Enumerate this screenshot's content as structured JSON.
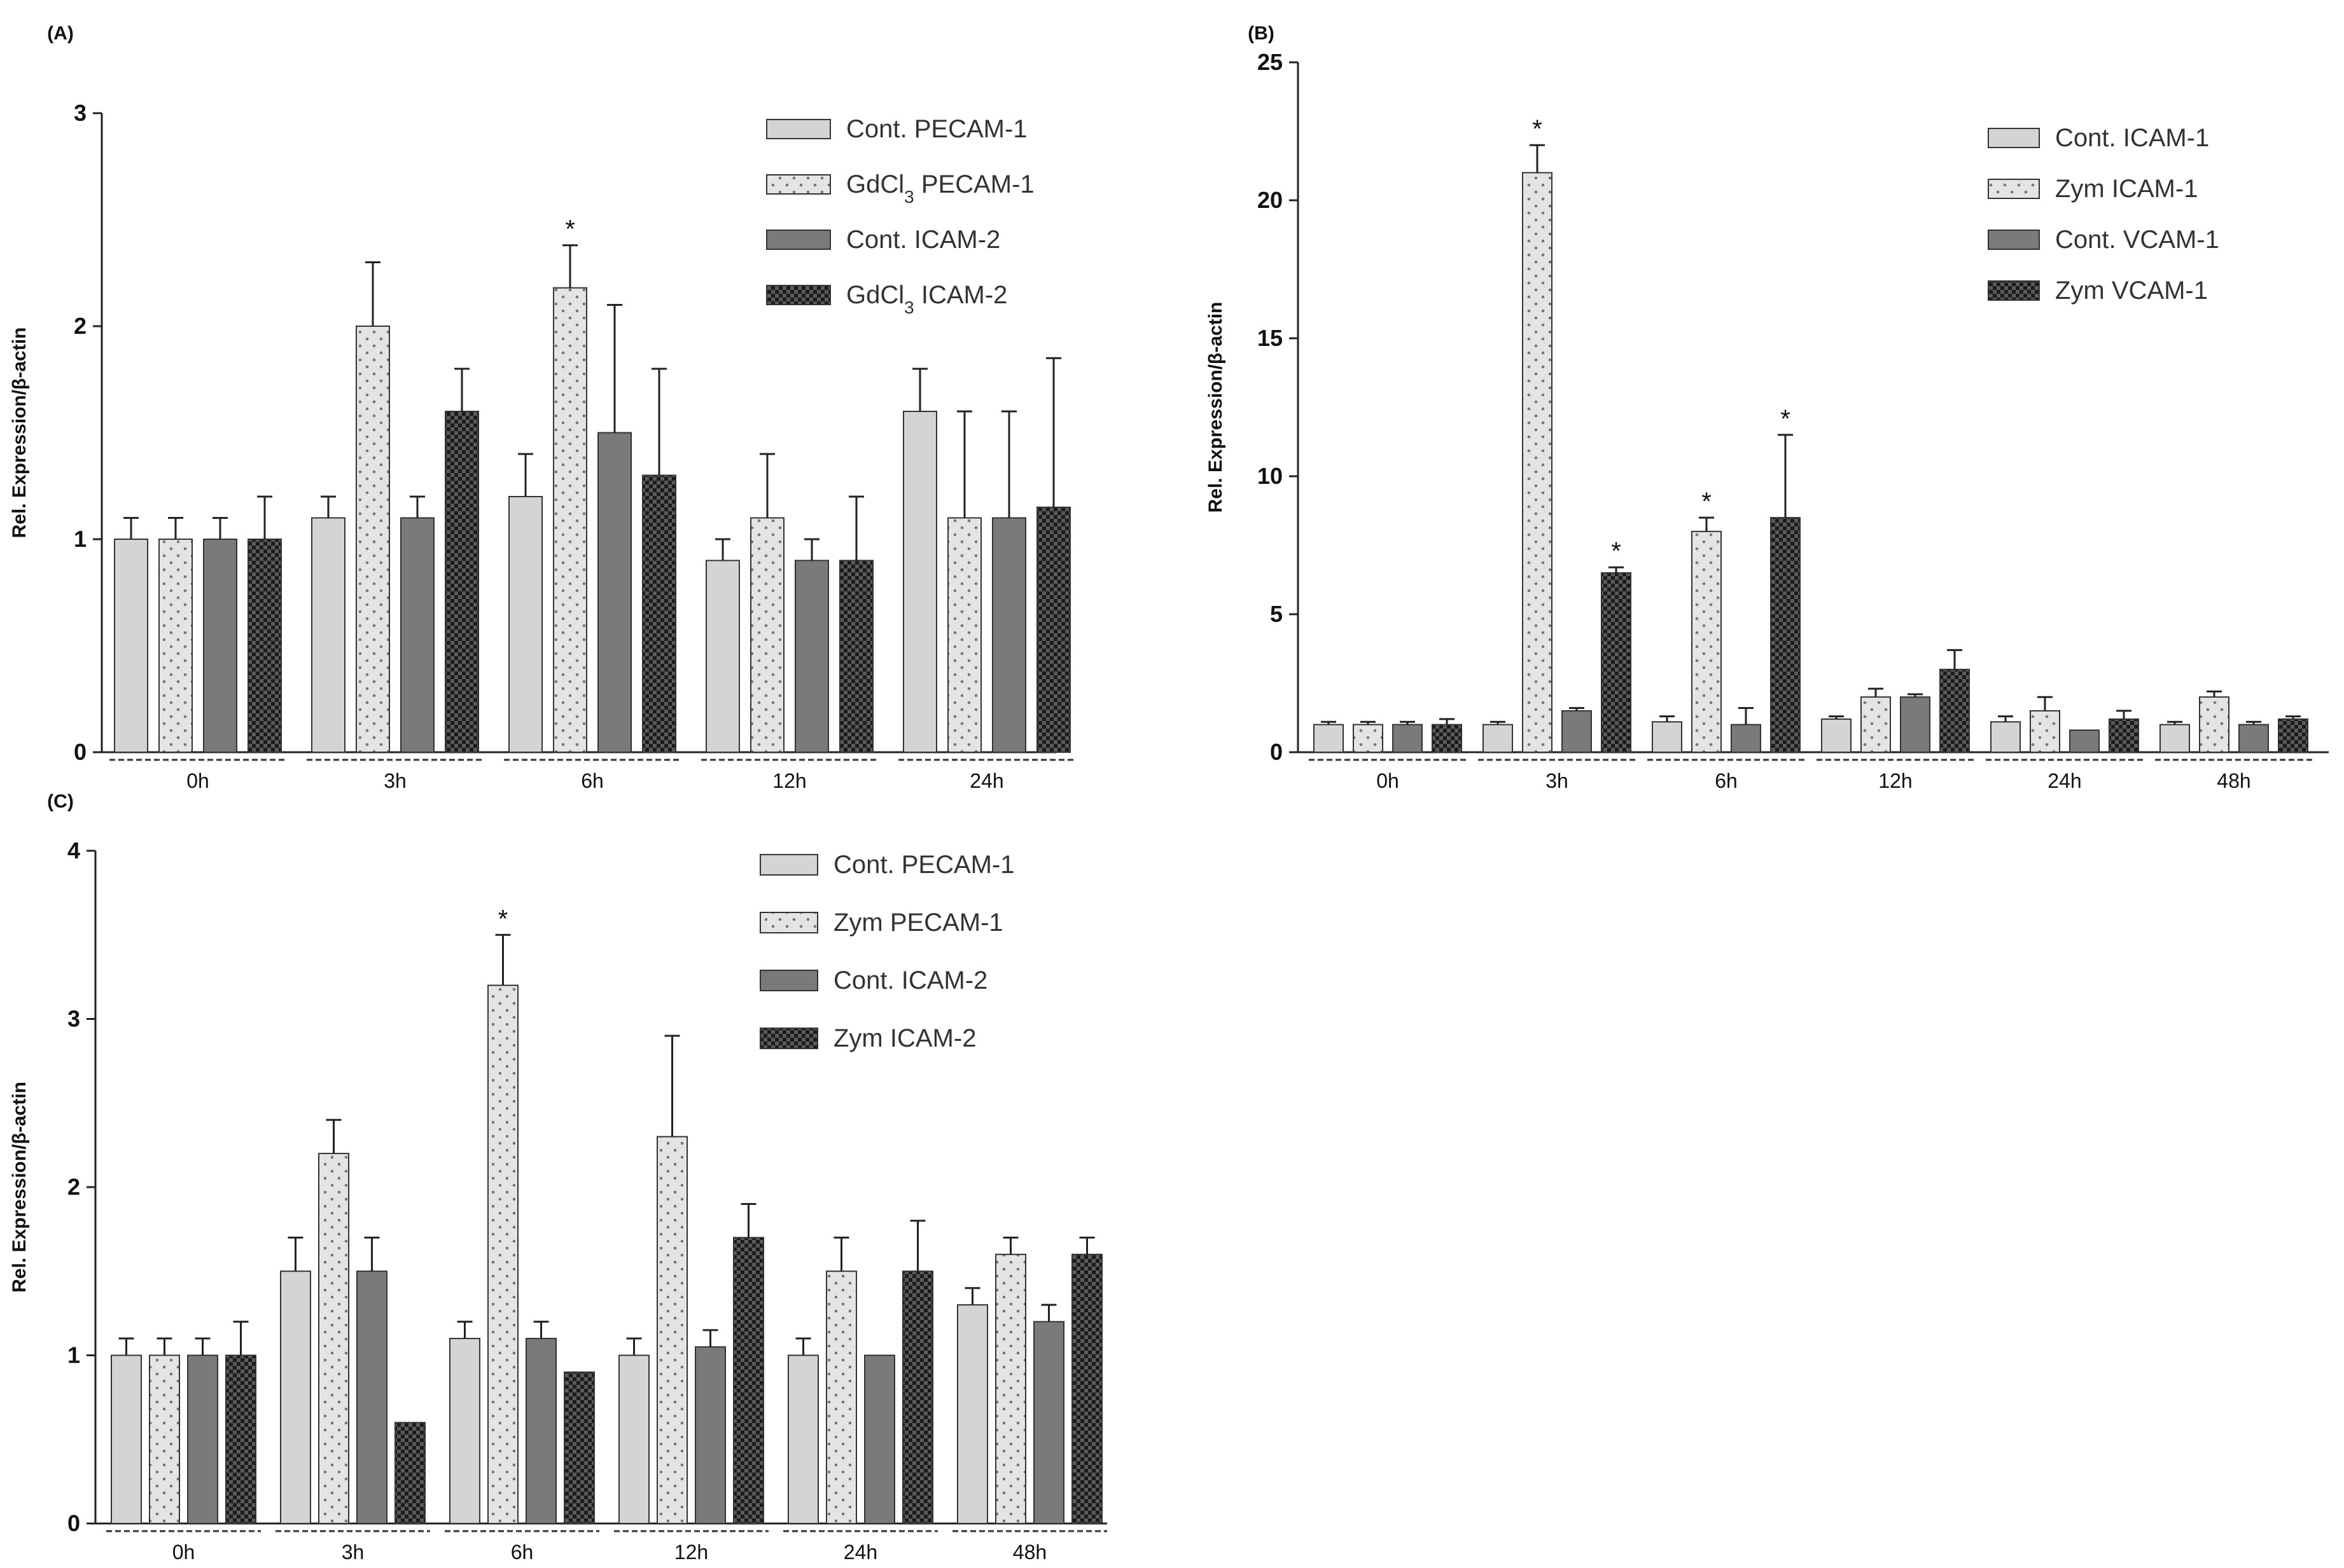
{
  "colors": {
    "cont_light": "#d4d4d4",
    "treat_dotted_bg": "#e4e4e4",
    "cont_dark": "#7a7a7a",
    "treat_check": "#2a2a2a",
    "axis": "#222222"
  },
  "chart_data": [
    {
      "id": "A",
      "panel_label": "(A)",
      "type": "bar",
      "ylabel": "Rel. Expression/β-actin",
      "ylim": [
        0,
        3
      ],
      "yticks": [
        "0",
        "1",
        "2",
        "3"
      ],
      "categories": [
        "0h",
        "3h",
        "6h",
        "12h",
        "24h"
      ],
      "legend": [
        "Cont. PECAM-1",
        "GdCl3 PECAM-1",
        "Cont. ICAM-2",
        "GdCl3 ICAM-2"
      ],
      "series": [
        {
          "name": "Cont. PECAM-1",
          "pattern": "light",
          "values": [
            1.0,
            1.1,
            1.2,
            0.9,
            1.6
          ],
          "errors": [
            0.1,
            0.1,
            0.2,
            0.1,
            0.2
          ],
          "stars": [
            false,
            false,
            false,
            false,
            false
          ]
        },
        {
          "name": "GdCl3 PECAM-1",
          "pattern": "dotted",
          "values": [
            1.0,
            2.0,
            2.18,
            1.1,
            1.1
          ],
          "errors": [
            0.1,
            0.3,
            0.2,
            0.3,
            0.5
          ],
          "stars": [
            false,
            false,
            true,
            false,
            false
          ]
        },
        {
          "name": "Cont. ICAM-2",
          "pattern": "dark",
          "values": [
            1.0,
            1.1,
            1.5,
            0.9,
            1.1
          ],
          "errors": [
            0.1,
            0.1,
            0.6,
            0.1,
            0.5
          ],
          "stars": [
            false,
            false,
            false,
            false,
            false
          ]
        },
        {
          "name": "GdCl3 ICAM-2",
          "pattern": "check",
          "values": [
            1.0,
            1.6,
            1.3,
            0.9,
            1.15
          ],
          "errors": [
            0.2,
            0.2,
            0.5,
            0.3,
            0.7
          ],
          "stars": [
            false,
            false,
            false,
            false,
            false
          ]
        }
      ]
    },
    {
      "id": "B",
      "panel_label": "(B)",
      "type": "bar",
      "ylabel": "Rel. Expression/β-actin",
      "ylim": [
        0,
        25
      ],
      "yticks": [
        "0",
        "5",
        "10",
        "15",
        "20",
        "25"
      ],
      "categories": [
        "0h",
        "3h",
        "6h",
        "12h",
        "24h",
        "48h"
      ],
      "legend": [
        "Cont. ICAM-1",
        "Zym ICAM-1",
        "Cont. VCAM-1",
        "Zym VCAM-1"
      ],
      "series": [
        {
          "name": "Cont. ICAM-1",
          "pattern": "light",
          "values": [
            1.0,
            1.0,
            1.1,
            1.2,
            1.1,
            1.0
          ],
          "errors": [
            0.1,
            0.1,
            0.2,
            0.1,
            0.2,
            0.1
          ],
          "stars": [
            false,
            false,
            false,
            false,
            false,
            false
          ]
        },
        {
          "name": "Zym ICAM-1",
          "pattern": "dotted",
          "values": [
            1.0,
            21.0,
            8.0,
            2.0,
            1.5,
            2.0
          ],
          "errors": [
            0.1,
            1.0,
            0.5,
            0.3,
            0.5,
            0.2
          ],
          "stars": [
            false,
            true,
            true,
            false,
            false,
            false
          ]
        },
        {
          "name": "Cont. VCAM-1",
          "pattern": "dark",
          "values": [
            1.0,
            1.5,
            1.0,
            2.0,
            0.8,
            1.0
          ],
          "errors": [
            0.1,
            0.1,
            0.6,
            0.1,
            0.0,
            0.1
          ],
          "stars": [
            false,
            false,
            false,
            false,
            false,
            false
          ]
        },
        {
          "name": "Zym VCAM-1",
          "pattern": "check",
          "values": [
            1.0,
            6.5,
            8.5,
            3.0,
            1.2,
            1.2
          ],
          "errors": [
            0.2,
            0.2,
            3.0,
            0.7,
            0.3,
            0.1
          ],
          "stars": [
            false,
            true,
            true,
            false,
            false,
            false
          ]
        }
      ]
    },
    {
      "id": "C",
      "panel_label": "(C)",
      "type": "bar",
      "ylabel": "Rel. Expression/β-actin",
      "ylim": [
        0,
        4
      ],
      "yticks": [
        "0",
        "1",
        "2",
        "3",
        "4"
      ],
      "categories": [
        "0h",
        "3h",
        "6h",
        "12h",
        "24h",
        "48h"
      ],
      "legend": [
        "Cont. PECAM-1",
        "Zym PECAM-1",
        "Cont. ICAM-2",
        "Zym ICAM-2"
      ],
      "series": [
        {
          "name": "Cont. PECAM-1",
          "pattern": "light",
          "values": [
            1.0,
            1.5,
            1.1,
            1.0,
            1.0,
            1.3
          ],
          "errors": [
            0.1,
            0.2,
            0.1,
            0.1,
            0.1,
            0.1
          ],
          "stars": [
            false,
            false,
            false,
            false,
            false,
            false
          ]
        },
        {
          "name": "Zym PECAM-1",
          "pattern": "dotted",
          "values": [
            1.0,
            2.2,
            3.2,
            2.3,
            1.5,
            1.6
          ],
          "errors": [
            0.1,
            0.2,
            0.3,
            0.6,
            0.2,
            0.1
          ],
          "stars": [
            false,
            false,
            true,
            false,
            false,
            false
          ]
        },
        {
          "name": "Cont. ICAM-2",
          "pattern": "dark",
          "values": [
            1.0,
            1.5,
            1.1,
            1.05,
            1.0,
            1.2
          ],
          "errors": [
            0.1,
            0.2,
            0.1,
            0.1,
            0.0,
            0.1
          ],
          "stars": [
            false,
            false,
            false,
            false,
            false,
            false
          ]
        },
        {
          "name": "Zym ICAM-2",
          "pattern": "check",
          "values": [
            1.0,
            0.6,
            0.9,
            1.7,
            1.5,
            1.6
          ],
          "errors": [
            0.2,
            0.0,
            0.0,
            0.2,
            0.3,
            0.1
          ],
          "stars": [
            false,
            false,
            false,
            false,
            false,
            false
          ]
        }
      ]
    }
  ]
}
